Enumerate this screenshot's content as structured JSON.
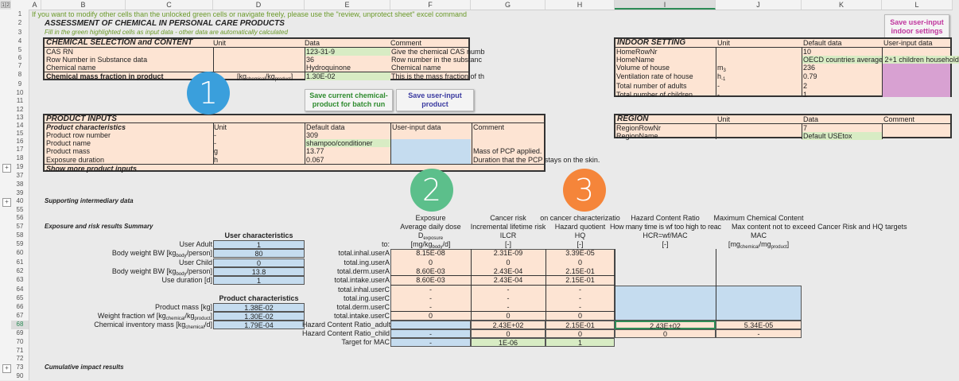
{
  "sheet": {
    "outline_levels": [
      "1",
      "2"
    ],
    "columns": [
      "A",
      "B",
      "C",
      "D",
      "E",
      "F",
      "G",
      "H",
      "I",
      "J",
      "K",
      "L"
    ],
    "selected_column": "I",
    "rows": [
      1,
      2,
      3,
      4,
      5,
      6,
      7,
      8,
      9,
      10,
      11,
      12,
      13,
      14,
      15,
      16,
      17,
      18,
      19,
      37,
      38,
      39,
      40,
      55,
      56,
      57,
      58,
      59,
      60,
      61,
      62,
      63,
      64,
      65,
      66,
      67,
      68,
      69,
      70,
      71,
      72,
      73,
      90
    ],
    "selected_row": 68,
    "collapsed_group_rows": [
      19,
      40,
      73
    ]
  },
  "notice": "If you want to modify other cells than the unlocked green cells or navigate freely, please use the \"review, unprotect sheet\" excel command",
  "title": "ASSESSMENT OF CHEMICAL IN PERSONAL CARE PRODUCTS",
  "subtitle": "Fill in the green highlighted cells as input data - other data are automatically calculated",
  "callouts": [
    {
      "label": "1",
      "color": "#3a9fdc"
    },
    {
      "label": "2",
      "color": "#5cbf8b"
    },
    {
      "label": "3",
      "color": "#f5853a"
    }
  ],
  "buttons": {
    "save_batch": {
      "label": "Save current chemical-product for batch run",
      "color": "#2e8b2e"
    },
    "save_product": {
      "label": "Save user-input product",
      "color": "#3a3aa0"
    },
    "save_indoor": {
      "label": "Save user-input indoor settings",
      "color": "#c0369e"
    }
  },
  "chemical": {
    "title": "CHEMICAL SELECTION and CONTENT",
    "headers": [
      "Unit",
      "Data",
      "Comment"
    ],
    "rows": [
      {
        "label": "CAS RN",
        "unit": [
          ""
        ],
        "data": "123-31-9",
        "comment": "Give the chemical CAS numb"
      },
      {
        "label": "Row Number in Substance data",
        "unit": [
          ""
        ],
        "data": "36",
        "comment": "Row number in the substanc"
      },
      {
        "label": "Chemical name",
        "unit": [
          ""
        ],
        "data": "Hydroquinone",
        "comment": "Chemical name"
      },
      {
        "label": "Chemical mass fraction in product",
        "unit": [
          "[kg",
          "chemical",
          "/kg",
          "product",
          "]"
        ],
        "data": "1.30E-02",
        "comment": "This is the mass fraction of th"
      }
    ]
  },
  "product": {
    "title": "PRODUCT INPUTS",
    "headers": [
      "Product characteristics",
      "Unit",
      "Default data",
      "User-input data",
      "Comment"
    ],
    "rows": [
      {
        "label": "Product row number",
        "unit": "-",
        "default": "309",
        "user": "",
        "comment": ""
      },
      {
        "label": "Product name",
        "unit": "-",
        "default": "shampoo/conditioner",
        "user": "",
        "comment": ""
      },
      {
        "label": "Product mass",
        "unit": "g",
        "default": "13.77",
        "user": "",
        "comment": "Mass of PCP applied."
      },
      {
        "label": "Exposure duration",
        "unit": "h",
        "default": "0.067",
        "user": "",
        "comment": "Duration that the PCP stays on the skin."
      }
    ],
    "more": "Show more product inputs"
  },
  "indoor": {
    "title": "INDOOR SETTING",
    "headers": [
      "Unit",
      "Default data",
      "User-input data"
    ],
    "rows": [
      {
        "label": "HomeRowNr",
        "unit": [
          ""
        ],
        "default": "10"
      },
      {
        "label": "HomeName",
        "unit": [
          ""
        ],
        "default": "OECD countries average 2+1 children household"
      },
      {
        "label": "Volume of house",
        "unit": [
          "m",
          "",
          "",
          "3"
        ],
        "default": "236"
      },
      {
        "label": "Ventilation rate of house",
        "unit": [
          "h",
          "",
          "",
          "-1"
        ],
        "default": "0.79"
      },
      {
        "label": "Total number of adults",
        "unit": [
          "-"
        ],
        "default": "2"
      },
      {
        "label": "Total number of children",
        "unit": [
          "-"
        ],
        "default": "1"
      }
    ]
  },
  "region": {
    "title": "REGION",
    "headers": [
      "Unit",
      "Data",
      "Comment"
    ],
    "rows": [
      {
        "label": "RegionRowNr",
        "data": "7"
      },
      {
        "label": "RegionName",
        "data": "Default USEtox"
      }
    ]
  },
  "sections": {
    "supporting": "Supporting intermediary data",
    "summary": "Exposure and risk results Summary",
    "cumulative": "Cumulative impact results"
  },
  "user_char": {
    "title": "User characteristics",
    "rows": [
      {
        "label": [
          "User Adult"
        ],
        "value": "1"
      },
      {
        "label": [
          "Body weight BW [kg",
          "body",
          "/person]"
        ],
        "value": "80"
      },
      {
        "label": [
          "User Child"
        ],
        "value": "0"
      },
      {
        "label": [
          "Body weight BW [kg",
          "body",
          "/person]"
        ],
        "value": "13.8"
      },
      {
        "label": [
          "Use duration [d]"
        ],
        "value": "1"
      }
    ]
  },
  "product_char": {
    "title": "Product characteristics",
    "rows": [
      {
        "label": [
          "Product mass [kg]"
        ],
        "value": "1.38E-02"
      },
      {
        "label": [
          "Weight fraction wf [kg",
          "chemical",
          "/kg",
          "product",
          "]"
        ],
        "value": "1.30E-02"
      },
      {
        "label": [
          "Chemical inventory mass  [kg",
          "chemical",
          "/d]"
        ],
        "value": "1.79E-04"
      }
    ]
  },
  "results": {
    "to_label": "to:",
    "columns": [
      {
        "l1": "Exposure",
        "l2": "Average daily dose",
        "l3": [
          "D",
          "exposure"
        ],
        "l4": [
          "[mg/kg",
          "body",
          "/d]"
        ]
      },
      {
        "l1": "Cancer risk",
        "l2": "Incremental lifetime risk",
        "l3": [
          "ILCR"
        ],
        "l4": [
          "[-]"
        ]
      },
      {
        "l1": "on cancer characterizatio",
        "l2": "Hazard quotient",
        "l3": [
          "HQ"
        ],
        "l4": [
          "[-]"
        ]
      },
      {
        "l1": "Hazard Content Ratio",
        "l2": "How many time is wf too high to reac",
        "l3": [
          "HCR=wf/MAC"
        ],
        "l4": [
          "[-]"
        ]
      },
      {
        "l1": "Maximum Chemical Content",
        "l2": "Max content not to exceed Cancer Risk and HQ targets",
        "l3": [
          "MAC"
        ],
        "l4": [
          "[mg",
          "chemical",
          "/mg",
          "product",
          "]"
        ]
      }
    ],
    "rows": [
      {
        "label": "total.inhal.userA",
        "values": [
          "8.15E-08",
          "2.31E-09",
          "3.39E-05"
        ]
      },
      {
        "label": "total.ing.userA",
        "values": [
          "0",
          "0",
          "0"
        ]
      },
      {
        "label": "total.derm.userA",
        "values": [
          "8.60E-03",
          "2.43E-04",
          "2.15E-01"
        ]
      },
      {
        "label": "total.intake.userA",
        "values": [
          "8.60E-03",
          "2.43E-04",
          "2.15E-01"
        ]
      },
      {
        "label": "total.inhal.userC",
        "values": [
          "-",
          "-",
          "-"
        ]
      },
      {
        "label": "total.ing.userC",
        "values": [
          "-",
          "-",
          "-"
        ]
      },
      {
        "label": "total.derm.userC",
        "values": [
          "-",
          "-",
          "-"
        ]
      },
      {
        "label": "total.intake.userC",
        "values": [
          "0",
          "0",
          "0"
        ]
      },
      {
        "label": "Hazard Content Ratio_adult",
        "values": [
          "",
          "2.43E+02",
          "2.15E-01",
          "2.43E+02",
          "5.34E-05"
        ]
      },
      {
        "label": "Hazard Content Ratio_child",
        "values": [
          "-",
          "0",
          "0",
          "0",
          "-"
        ]
      },
      {
        "label": "Target for MAC",
        "values": [
          "-",
          "1E-06",
          "1"
        ]
      }
    ]
  }
}
